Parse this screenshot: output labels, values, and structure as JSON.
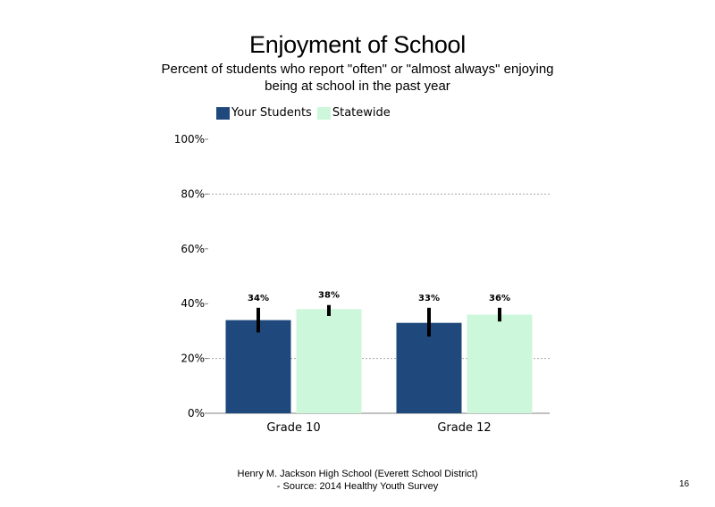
{
  "chart_data": {
    "type": "bar",
    "title": "Enjoyment of School",
    "subtitle_lines": [
      "Percent of students  who report \"often\" or \"almost always\" enjoying",
      "being at school in the past year"
    ],
    "categories": [
      "Grade 10",
      "Grade 12"
    ],
    "series": [
      {
        "name": "Your Students",
        "color": "#1f497d",
        "values": [
          34,
          33
        ],
        "labels": [
          "34%",
          "33%"
        ],
        "error_low": [
          29.5,
          28
        ],
        "error_high": [
          38.5,
          38.5
        ]
      },
      {
        "name": "Statewide",
        "color": "#ccf7da",
        "values": [
          38,
          36
        ],
        "labels": [
          "38%",
          "36%"
        ],
        "error_low": [
          35.5,
          33.5
        ],
        "error_high": [
          39.5,
          38.5
        ]
      }
    ],
    "ylim": [
      0,
      100
    ],
    "yticks": [
      0,
      20,
      40,
      60,
      80,
      100
    ],
    "ytick_labels": [
      "0%",
      "20%",
      "40%",
      "60%",
      "80%",
      "100%"
    ],
    "gridlines": [
      20,
      80
    ],
    "legend_position": "top-left"
  },
  "footer": {
    "line1": "Henry M.  Jackson High  School (Everett School District)",
    "line2": "- Source: 2014 Healthy  Youth Survey"
  },
  "page_number": "16"
}
